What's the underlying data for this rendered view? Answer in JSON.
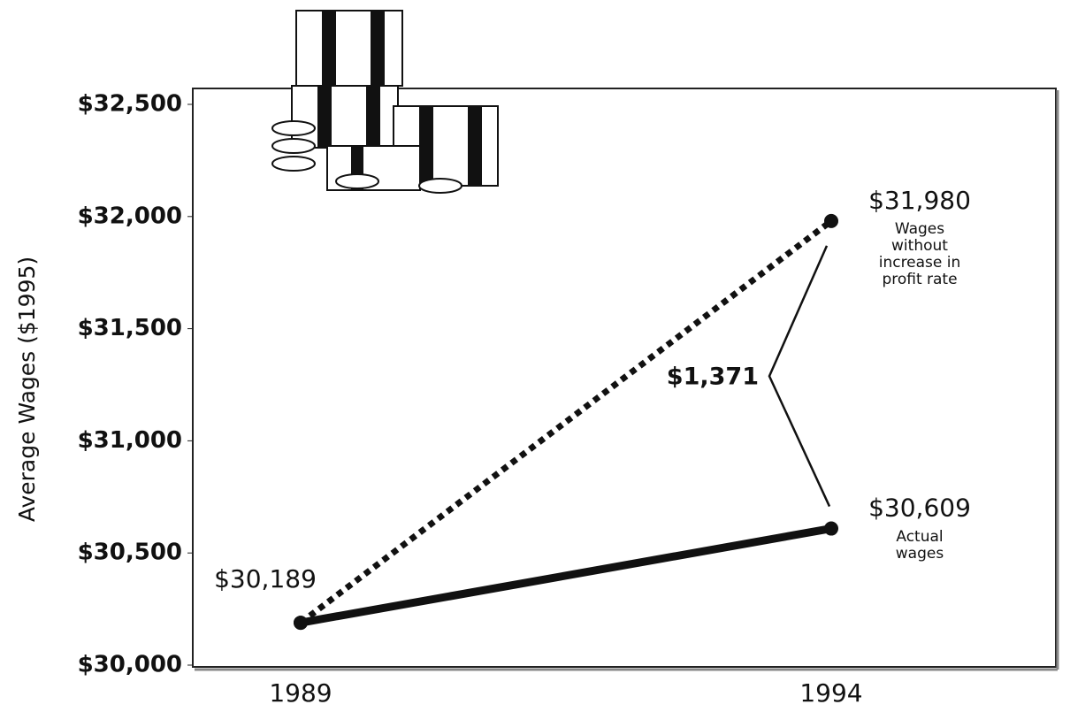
{
  "chart_data": {
    "type": "line",
    "ylabel": "Average Wages ($1995)",
    "categories": [
      "1989",
      "1994"
    ],
    "series": [
      {
        "name": "Wages without increase in profit rate",
        "color": "#111111",
        "style": "dotted",
        "values": [
          30189,
          31980
        ],
        "value_labels": [
          null,
          "$31,980"
        ]
      },
      {
        "name": "Actual wages",
        "color": "#111111",
        "style": "solid",
        "values": [
          30189,
          30609
        ],
        "value_labels": [
          "$30,189",
          "$30,609"
        ]
      }
    ],
    "annotations": [
      {
        "text": "$1,371"
      }
    ],
    "ylim": [
      30000,
      32500
    ],
    "yticks": [
      {
        "value": 30000,
        "label": "$30,000"
      },
      {
        "value": 30500,
        "label": "$30,500"
      },
      {
        "value": 31000,
        "label": "$31,000"
      },
      {
        "value": 31500,
        "label": "$31,500"
      },
      {
        "value": 32000,
        "label": "$32,000"
      },
      {
        "value": 32500,
        "label": "$32,500"
      }
    ],
    "grid": false
  }
}
